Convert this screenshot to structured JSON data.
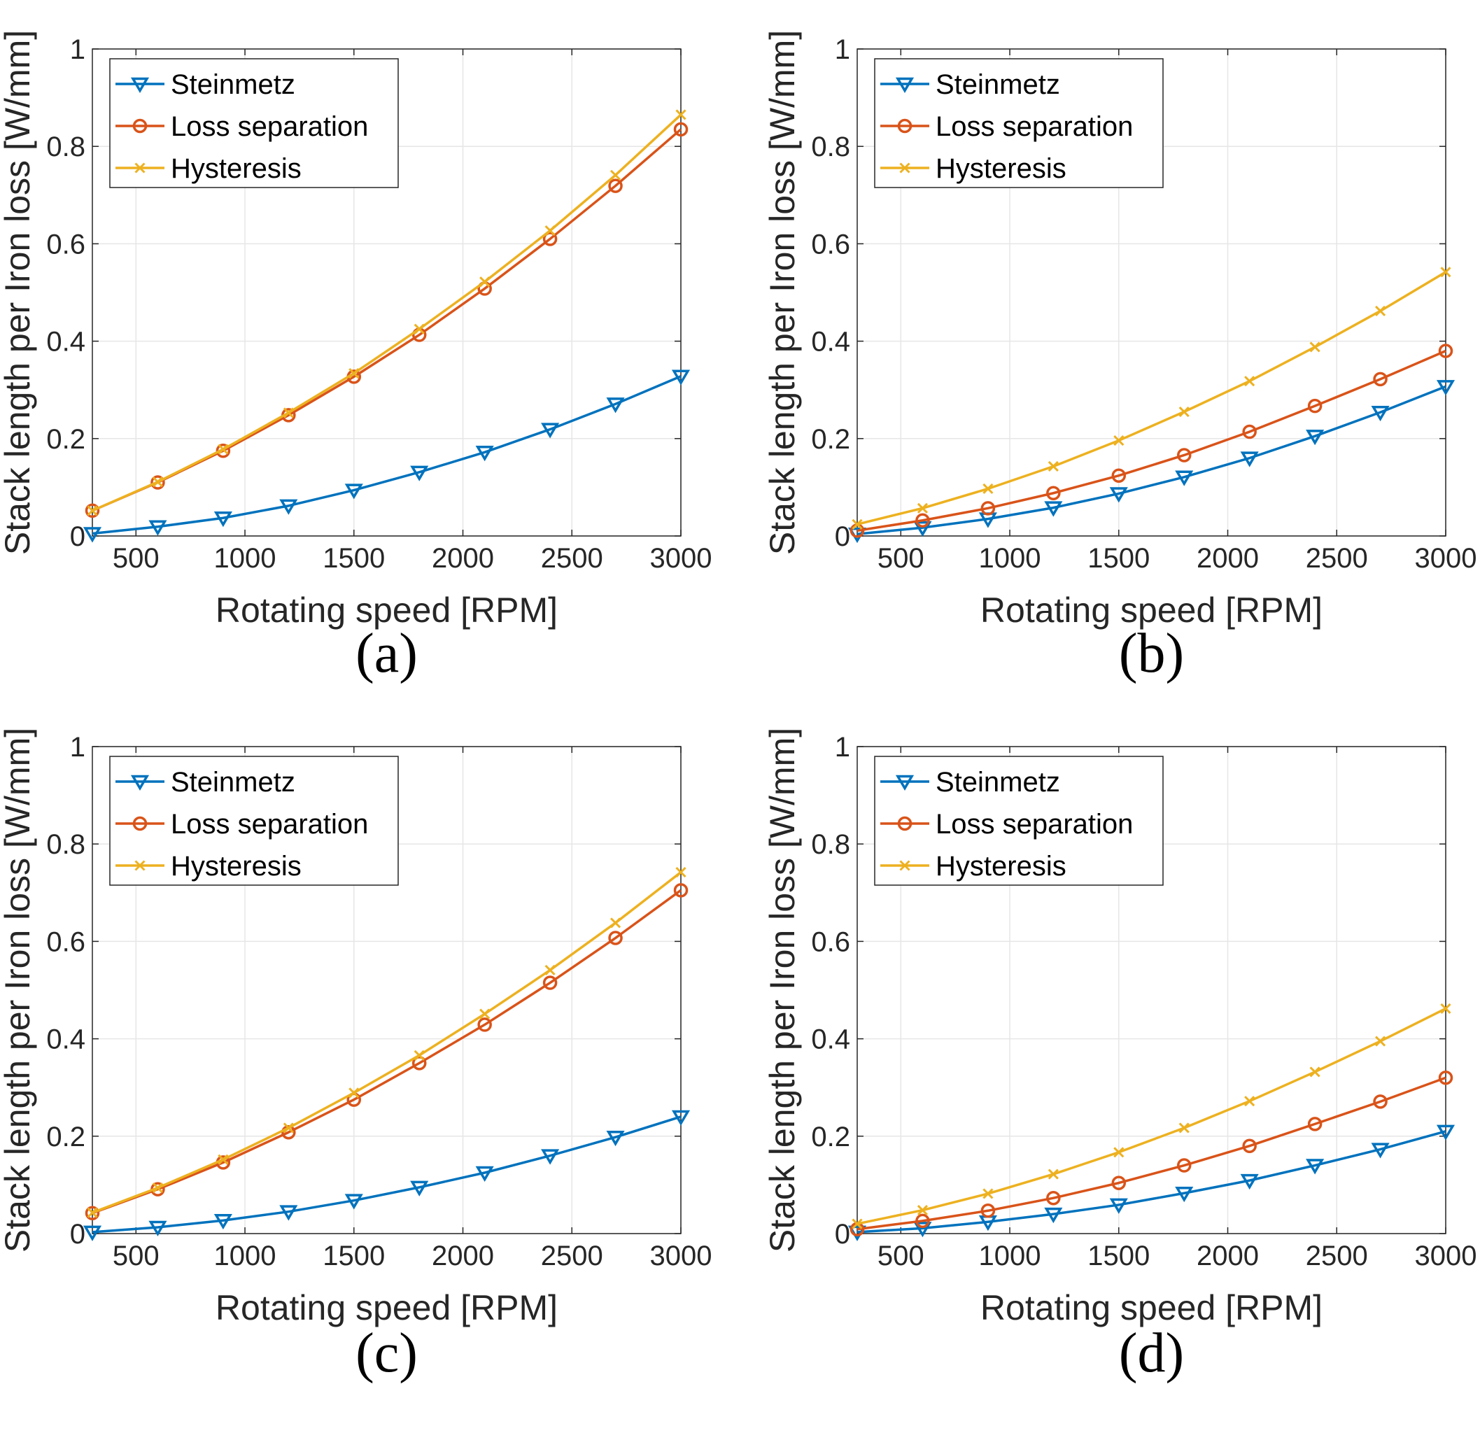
{
  "chart_data": [
    {
      "panel": "(a)",
      "type": "line",
      "xlabel": "Rotating speed [RPM]",
      "ylabel": "Stack length per Iron loss [W/mm]",
      "xlim": [
        300,
        3000
      ],
      "ylim": [
        0,
        1
      ],
      "xticks": [
        500,
        1000,
        1500,
        2000,
        2500,
        3000
      ],
      "yticks": [
        0,
        0.2,
        0.4,
        0.6,
        0.8,
        1
      ],
      "grid": true,
      "legend_position": "top-left",
      "x": [
        300,
        600,
        900,
        1200,
        1500,
        1800,
        2100,
        2400,
        2700,
        3000
      ],
      "series": [
        {
          "name": "Steinmetz",
          "marker": "triangle-down",
          "color": "#0072BD",
          "values": [
            0.005,
            0.019,
            0.037,
            0.062,
            0.094,
            0.131,
            0.172,
            0.219,
            0.271,
            0.328
          ]
        },
        {
          "name": "Loss separation",
          "marker": "circle",
          "color": "#D95319",
          "values": [
            0.052,
            0.11,
            0.175,
            0.248,
            0.327,
            0.413,
            0.508,
            0.61,
            0.719,
            0.835
          ]
        },
        {
          "name": "Hysteresis",
          "marker": "x",
          "color": "#EDB120",
          "values": [
            0.052,
            0.111,
            0.178,
            0.253,
            0.334,
            0.425,
            0.522,
            0.627,
            0.741,
            0.865
          ]
        }
      ]
    },
    {
      "panel": "(b)",
      "type": "line",
      "xlabel": "Rotating speed [RPM]",
      "ylabel": "Stack length per Iron loss [W/mm]",
      "xlim": [
        300,
        3000
      ],
      "ylim": [
        0,
        1
      ],
      "xticks": [
        500,
        1000,
        1500,
        2000,
        2500,
        3000
      ],
      "yticks": [
        0,
        0.2,
        0.4,
        0.6,
        0.8,
        1
      ],
      "grid": true,
      "legend_position": "top-left",
      "x": [
        300,
        600,
        900,
        1200,
        1500,
        1800,
        2100,
        2400,
        2700,
        3000
      ],
      "series": [
        {
          "name": "Steinmetz",
          "marker": "triangle-down",
          "color": "#0072BD",
          "values": [
            0.004,
            0.017,
            0.035,
            0.058,
            0.087,
            0.121,
            0.16,
            0.205,
            0.254,
            0.307
          ]
        },
        {
          "name": "Loss separation",
          "marker": "circle",
          "color": "#D95319",
          "values": [
            0.011,
            0.032,
            0.057,
            0.088,
            0.124,
            0.166,
            0.214,
            0.267,
            0.322,
            0.38
          ]
        },
        {
          "name": "Hysteresis",
          "marker": "x",
          "color": "#EDB120",
          "values": [
            0.024,
            0.057,
            0.097,
            0.143,
            0.196,
            0.255,
            0.318,
            0.388,
            0.462,
            0.542
          ]
        }
      ]
    },
    {
      "panel": "(c)",
      "type": "line",
      "xlabel": "Rotating speed [RPM]",
      "ylabel": "Stack length per Iron loss [W/mm]",
      "xlim": [
        300,
        3000
      ],
      "ylim": [
        0,
        1
      ],
      "xticks": [
        500,
        1000,
        1500,
        2000,
        2500,
        3000
      ],
      "yticks": [
        0,
        0.2,
        0.4,
        0.6,
        0.8,
        1
      ],
      "grid": true,
      "legend_position": "top-left",
      "x": [
        300,
        600,
        900,
        1200,
        1500,
        1800,
        2100,
        2400,
        2700,
        3000
      ],
      "series": [
        {
          "name": "Steinmetz",
          "marker": "triangle-down",
          "color": "#0072BD",
          "values": [
            0.003,
            0.013,
            0.027,
            0.045,
            0.068,
            0.095,
            0.125,
            0.16,
            0.198,
            0.24
          ]
        },
        {
          "name": "Loss separation",
          "marker": "circle",
          "color": "#D95319",
          "values": [
            0.042,
            0.091,
            0.146,
            0.208,
            0.275,
            0.35,
            0.429,
            0.515,
            0.607,
            0.705
          ]
        },
        {
          "name": "Hysteresis",
          "marker": "x",
          "color": "#EDB120",
          "values": [
            0.043,
            0.094,
            0.152,
            0.217,
            0.289,
            0.366,
            0.451,
            0.541,
            0.638,
            0.742
          ]
        }
      ]
    },
    {
      "panel": "(d)",
      "type": "line",
      "xlabel": "Rotating speed [RPM]",
      "ylabel": "Stack length per Iron loss [W/mm]",
      "xlim": [
        300,
        3000
      ],
      "ylim": [
        0,
        1
      ],
      "xticks": [
        500,
        1000,
        1500,
        2000,
        2500,
        3000
      ],
      "yticks": [
        0,
        0.2,
        0.4,
        0.6,
        0.8,
        1
      ],
      "grid": true,
      "legend_position": "top-left",
      "x": [
        300,
        600,
        900,
        1200,
        1500,
        1800,
        2100,
        2400,
        2700,
        3000
      ],
      "series": [
        {
          "name": "Steinmetz",
          "marker": "triangle-down",
          "color": "#0072BD",
          "values": [
            0.003,
            0.011,
            0.024,
            0.04,
            0.059,
            0.083,
            0.109,
            0.14,
            0.173,
            0.21
          ]
        },
        {
          "name": "Loss separation",
          "marker": "circle",
          "color": "#D95319",
          "values": [
            0.009,
            0.026,
            0.047,
            0.073,
            0.104,
            0.14,
            0.18,
            0.225,
            0.271,
            0.32
          ]
        },
        {
          "name": "Hysteresis",
          "marker": "x",
          "color": "#EDB120",
          "values": [
            0.02,
            0.048,
            0.082,
            0.122,
            0.167,
            0.217,
            0.272,
            0.332,
            0.395,
            0.462
          ]
        }
      ]
    }
  ]
}
